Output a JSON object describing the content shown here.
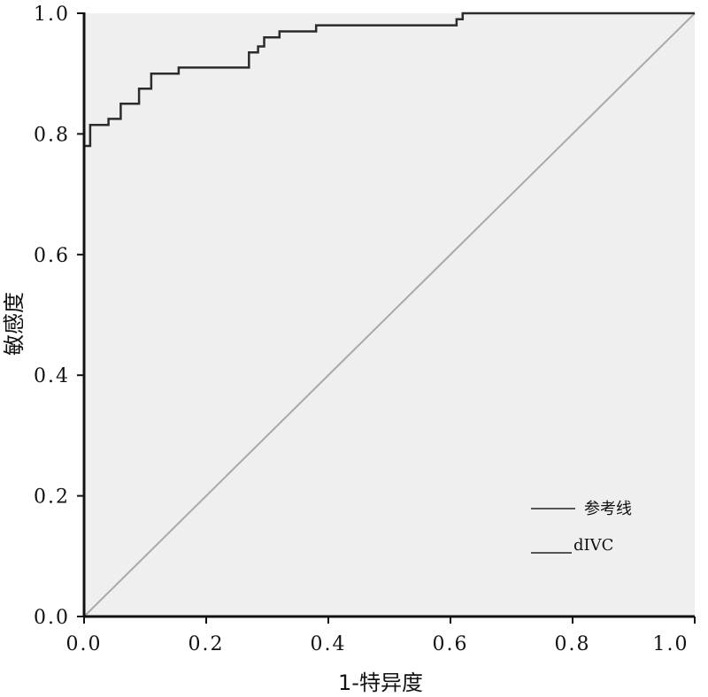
{
  "chart_data": {
    "type": "line",
    "title": "",
    "xlabel": "1-特异度",
    "ylabel": "敏感度",
    "xlim": [
      0,
      1
    ],
    "ylim": [
      0,
      1
    ],
    "x_ticks": [
      "0.0",
      "0.2",
      "0.4",
      "0.6",
      "0.8",
      "1.0"
    ],
    "y_ticks": [
      "0.0",
      "0.2",
      "0.4",
      "0.6",
      "0.8",
      "1.0"
    ],
    "background_color": "#efefef",
    "series": [
      {
        "name": "参考线",
        "color": "#a9a9a9",
        "x": [
          0,
          1
        ],
        "y": [
          0,
          1
        ]
      },
      {
        "name": "dIVC",
        "color": "#2b2b2b",
        "x": [
          0,
          0.01,
          0.01,
          0.04,
          0.04,
          0.06,
          0.06,
          0.09,
          0.09,
          0.11,
          0.11,
          0.155,
          0.155,
          0.27,
          0.27,
          0.285,
          0.285,
          0.295,
          0.295,
          0.32,
          0.32,
          0.38,
          0.38,
          0.61,
          0.61,
          0.62,
          0.62,
          0.91,
          0.91,
          1.0
        ],
        "y": [
          0.78,
          0.78,
          0.815,
          0.815,
          0.825,
          0.825,
          0.85,
          0.85,
          0.875,
          0.875,
          0.9,
          0.9,
          0.91,
          0.91,
          0.935,
          0.935,
          0.945,
          0.945,
          0.96,
          0.96,
          0.97,
          0.97,
          0.98,
          0.98,
          0.99,
          0.99,
          1.0,
          1.0,
          1.0,
          1.0
        ]
      }
    ],
    "legend": {
      "position": "bottom-right",
      "entries": [
        "参考线",
        "dIVC"
      ]
    }
  }
}
